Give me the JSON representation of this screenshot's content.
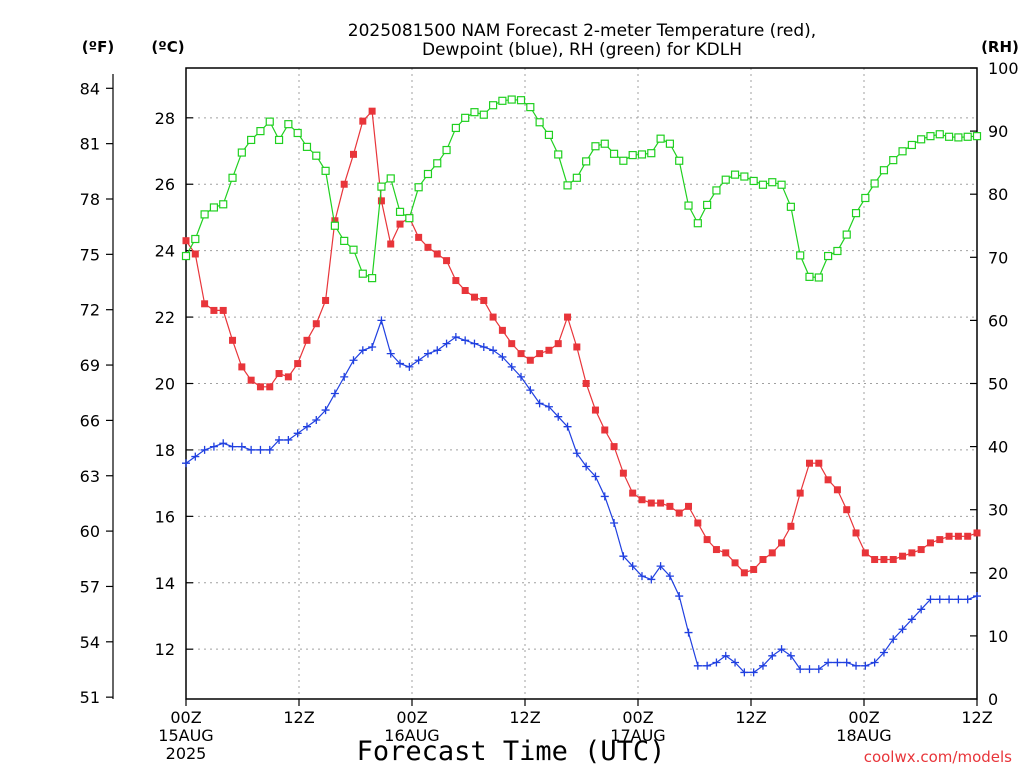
{
  "chart_data": {
    "type": "line",
    "title_line1": "2025081500 NAM Forecast 2-meter Temperature (red),",
    "title_line2": "Dewpoint (blue), RH (green) for KDLH",
    "unit_left_outer": "(ºF)",
    "unit_left_inner": "(ºC)",
    "unit_right": "(RH)",
    "xlabel": "Forecast Time (UTC)",
    "credit": "coolwx.com/models",
    "x_range_hours": [
      0,
      84
    ],
    "x_ticks": [
      {
        "hour": 0,
        "l1": "00Z",
        "l2": "15AUG",
        "l3": "2025"
      },
      {
        "hour": 12,
        "l1": "12Z",
        "l2": "",
        "l3": ""
      },
      {
        "hour": 24,
        "l1": "00Z",
        "l2": "16AUG",
        "l3": ""
      },
      {
        "hour": 36,
        "l1": "12Z",
        "l2": "",
        "l3": ""
      },
      {
        "hour": 48,
        "l1": "00Z",
        "l2": "17AUG",
        "l3": ""
      },
      {
        "hour": 60,
        "l1": "12Z",
        "l2": "",
        "l3": ""
      },
      {
        "hour": 72,
        "l1": "00Z",
        "l2": "18AUG",
        "l3": ""
      },
      {
        "hour": 84,
        "l1": "12Z",
        "l2": "",
        "l3": ""
      }
    ],
    "c_range": [
      10.5,
      29.5
    ],
    "c_ticks": [
      12,
      14,
      16,
      18,
      20,
      22,
      24,
      26,
      28
    ],
    "f_ticks": [
      51,
      54,
      57,
      60,
      63,
      66,
      69,
      72,
      75,
      78,
      81,
      84
    ],
    "rh_range": [
      0,
      100
    ],
    "rh_ticks": [
      0,
      10,
      20,
      30,
      40,
      50,
      60,
      70,
      80,
      90,
      100
    ],
    "grid": true,
    "colors": {
      "temperature": "#e8353a",
      "dewpoint": "#2040e0",
      "rh": "#20d020",
      "grid": "#a0a0a0"
    },
    "series": [
      {
        "key": "temperature",
        "unit": "C",
        "marker": "filled-square",
        "values": [
          24.3,
          23.9,
          22.4,
          22.2,
          22.2,
          21.3,
          20.5,
          20.1,
          19.9,
          19.9,
          20.3,
          20.2,
          20.6,
          21.3,
          21.8,
          22.5,
          24.9,
          26.0,
          26.9,
          27.9,
          28.2,
          25.5,
          24.2,
          24.8,
          25.0,
          24.4,
          24.1,
          23.9,
          23.7,
          23.1,
          22.8,
          22.6,
          22.5,
          22.0,
          21.6,
          21.2,
          20.9,
          20.7,
          20.9,
          21.0,
          21.2,
          22.0,
          21.1,
          20.0,
          19.2,
          18.6,
          18.1,
          17.3,
          16.7,
          16.5,
          16.4,
          16.4,
          16.3,
          16.1,
          16.3,
          15.8,
          15.3,
          15.0,
          14.9,
          14.6,
          14.3,
          14.4,
          14.7,
          14.9,
          15.2,
          15.7,
          16.7,
          17.6,
          17.6,
          17.1,
          16.8,
          16.2,
          15.5,
          14.9,
          14.7,
          14.7,
          14.7,
          14.8,
          14.9,
          15.0,
          15.2,
          15.3,
          15.4,
          15.4,
          15.4,
          15.5
        ]
      },
      {
        "key": "dewpoint",
        "unit": "C",
        "marker": "plus",
        "values": [
          17.6,
          17.8,
          18.0,
          18.1,
          18.2,
          18.1,
          18.1,
          18.0,
          18.0,
          18.0,
          18.3,
          18.3,
          18.5,
          18.7,
          18.9,
          19.2,
          19.7,
          20.2,
          20.7,
          21.0,
          21.1,
          21.9,
          20.9,
          20.6,
          20.5,
          20.7,
          20.9,
          21.0,
          21.2,
          21.4,
          21.3,
          21.2,
          21.1,
          21.0,
          20.8,
          20.5,
          20.2,
          19.8,
          19.4,
          19.3,
          19.0,
          18.7,
          17.9,
          17.5,
          17.2,
          16.6,
          15.8,
          14.8,
          14.5,
          14.2,
          14.1,
          14.5,
          14.2,
          13.6,
          12.5,
          11.5,
          11.5,
          11.6,
          11.8,
          11.6,
          11.3,
          11.3,
          11.5,
          11.8,
          12.0,
          11.8,
          11.4,
          11.4,
          11.4,
          11.6,
          11.6,
          11.6,
          11.5,
          11.5,
          11.6,
          11.9,
          12.3,
          12.6,
          12.9,
          13.2,
          13.5,
          13.5,
          13.5,
          13.5,
          13.5,
          13.6
        ]
      },
      {
        "key": "rh",
        "unit": "%",
        "marker": "open-square",
        "values": [
          70.2,
          72.9,
          76.8,
          77.9,
          78.4,
          82.6,
          86.6,
          88.6,
          90.0,
          91.5,
          88.6,
          91.1,
          89.7,
          87.5,
          86.1,
          83.7,
          75.0,
          72.6,
          71.2,
          67.4,
          66.7,
          81.2,
          82.5,
          77.2,
          76.2,
          81.1,
          83.2,
          84.9,
          87.0,
          90.5,
          92.1,
          93.0,
          92.6,
          94.1,
          94.8,
          95.0,
          94.9,
          93.8,
          91.4,
          89.4,
          86.3,
          81.4,
          82.6,
          85.2,
          87.6,
          88.0,
          86.4,
          85.3,
          86.2,
          86.3,
          86.5,
          88.8,
          88.0,
          85.3,
          78.2,
          75.4,
          78.3,
          80.6,
          82.3,
          83.1,
          82.8,
          82.1,
          81.5,
          81.9,
          81.5,
          78.0,
          70.3,
          66.9,
          66.8,
          70.2,
          71.0,
          73.6,
          77.0,
          79.4,
          81.7,
          83.8,
          85.4,
          86.8,
          87.8,
          88.7,
          89.2,
          89.5,
          89.1,
          89.0,
          89.1,
          89.2
        ]
      }
    ]
  }
}
